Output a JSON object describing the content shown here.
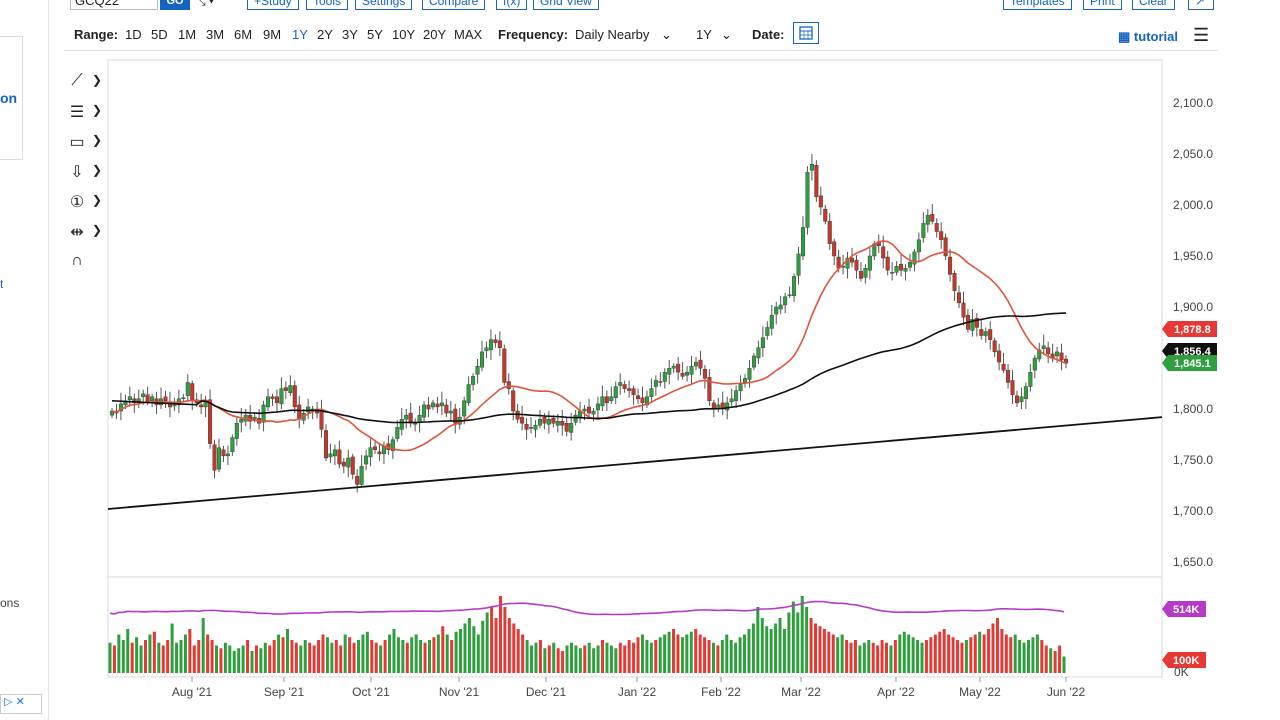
{
  "toolbar": {
    "symbol": "GCQ22",
    "go_label": "GO",
    "draw_icon": "pointer-icon",
    "study_label": "+Study",
    "tools_label": "Tools",
    "settings_label": "Settings",
    "compare_label": "Compare",
    "fx_label": "f(x)",
    "grid_label": "Grid View",
    "templates_label": "Templates",
    "print_label": "Print",
    "clear_label": "Clear"
  },
  "rangebar": {
    "range_label": "Range:",
    "ranges": [
      "1D",
      "5D",
      "1M",
      "3M",
      "6M",
      "9M",
      "1Y",
      "2Y",
      "3Y",
      "5Y",
      "10Y",
      "20Y",
      "MAX"
    ],
    "active_range": "1Y",
    "frequency_label": "Frequency:",
    "frequency_value": "Daily Nearby",
    "period_value": "1Y",
    "date_label": "Date:",
    "tutorial_label": "tutorial"
  },
  "left_panel": {
    "fragment_1": "on",
    "fragment_2": "t",
    "fragment_3": "ons"
  },
  "tools": [
    "line-tool-icon",
    "fib-tool-icon",
    "rectangle-tool-icon",
    "arrow-tool-icon",
    "counter-tool-icon",
    "measure-tool-icon",
    "magnet-icon"
  ],
  "chart_data": {
    "type": "candlestick",
    "price_axis": {
      "ticks": [
        "2,100.0",
        "2,050.0",
        "2,000.0",
        "1,950.0",
        "1,900.0",
        "1,850.0",
        "1,800.0",
        "1,750.0",
        "1,700.0",
        "1,650.0"
      ],
      "range": [
        1640,
        2120
      ]
    },
    "time_axis": {
      "ticks": [
        "Aug '21",
        "Sep '21",
        "Oct '21",
        "Nov '21",
        "Dec '21",
        "Jan '22",
        "Feb '22",
        "Mar '22",
        "Apr '22",
        "May '22",
        "Jun '22"
      ]
    },
    "last_price_tags": [
      {
        "label": "1,878.8",
        "color": "#e53935"
      },
      {
        "label": "1,856.4",
        "color": "#111111"
      },
      {
        "label": "1,845.1",
        "color": "#2e9e3f"
      }
    ],
    "volume_tags": [
      {
        "label": "514K",
        "color": "#b53ac7"
      },
      {
        "label": "100K",
        "color": "#e53935"
      }
    ],
    "volume_axis_label": "0K",
    "series": [
      {
        "name": "",
        "color": "#e0533c",
        "kind": "ma50"
      },
      {
        "name": "",
        "color": "#111111",
        "kind": "ma200"
      },
      {
        "name": "",
        "color": "#111111",
        "kind": "trendline",
        "points": [
          [
            0,
            1702
          ],
          [
            1,
            1792
          ]
        ]
      }
    ],
    "price_series": [
      1798,
      1796,
      1805,
      1808,
      1812,
      1806,
      1810,
      1815,
      1807,
      1812,
      1804,
      1810,
      1808,
      1802,
      1806,
      1810,
      1811,
      1826,
      1808,
      1806,
      1802,
      1807,
      1766,
      1740,
      1762,
      1754,
      1756,
      1772,
      1786,
      1790,
      1794,
      1788,
      1792,
      1786,
      1804,
      1812,
      1810,
      1806,
      1820,
      1818,
      1823,
      1802,
      1790,
      1796,
      1802,
      1800,
      1796,
      1780,
      1752,
      1756,
      1760,
      1746,
      1744,
      1752,
      1736,
      1726,
      1744,
      1754,
      1762,
      1760,
      1756,
      1764,
      1760,
      1770,
      1782,
      1790,
      1794,
      1786,
      1786,
      1794,
      1804,
      1800,
      1806,
      1802,
      1806,
      1796,
      1798,
      1786,
      1792,
      1808,
      1824,
      1832,
      1842,
      1856,
      1860,
      1868,
      1865,
      1860,
      1826,
      1820,
      1798,
      1790,
      1786,
      1780,
      1782,
      1784,
      1790,
      1786,
      1790,
      1786,
      1788,
      1784,
      1778,
      1786,
      1794,
      1798,
      1800,
      1796,
      1798,
      1805,
      1812,
      1806,
      1812,
      1822,
      1826,
      1820,
      1818,
      1814,
      1810,
      1806,
      1812,
      1820,
      1828,
      1826,
      1836,
      1840,
      1842,
      1836,
      1832,
      1836,
      1842,
      1846,
      1840,
      1830,
      1808,
      1800,
      1804,
      1800,
      1806,
      1810,
      1818,
      1824,
      1830,
      1840,
      1852,
      1860,
      1870,
      1880,
      1892,
      1900,
      1902,
      1910,
      1912,
      1930,
      1952,
      1978,
      2032,
      2040,
      2008,
      1998,
      1984,
      1962,
      1950,
      1938,
      1940,
      1948,
      1944,
      1936,
      1928,
      1938,
      1950,
      1962,
      1960,
      1948,
      1936,
      1934,
      1940,
      1936,
      1938,
      1944,
      1954,
      1966,
      1982,
      1990,
      1984,
      1974,
      1966,
      1950,
      1932,
      1916,
      1904,
      1890,
      1878,
      1888,
      1880,
      1872,
      1876,
      1868,
      1856,
      1846,
      1838,
      1826,
      1814,
      1806,
      1812,
      1822,
      1836,
      1850,
      1858,
      1862,
      1854,
      1850,
      1856,
      1848,
      1845
    ],
    "volume_values": [
      0.55,
      0.5,
      0.7,
      0.6,
      0.8,
      0.55,
      0.65,
      0.5,
      0.6,
      0.7,
      0.75,
      0.55,
      0.5,
      0.6,
      0.9,
      0.55,
      0.6,
      0.7,
      0.8,
      0.5,
      0.6,
      1.0,
      0.7,
      0.6,
      0.5,
      0.45,
      0.55,
      0.5,
      0.4,
      0.45,
      0.5,
      0.6,
      0.4,
      0.5,
      0.45,
      0.55,
      0.5,
      0.6,
      0.7,
      0.65,
      0.8,
      0.6,
      0.55,
      0.5,
      0.6,
      0.55,
      0.5,
      0.6,
      0.7,
      0.65,
      0.55,
      0.6,
      0.5,
      0.7,
      0.65,
      0.55,
      0.6,
      0.7,
      0.75,
      0.6,
      0.55,
      0.5,
      0.6,
      0.7,
      0.8,
      0.65,
      0.6,
      0.55,
      0.65,
      0.7,
      0.6,
      0.55,
      0.6,
      0.65,
      0.7,
      0.85,
      0.7,
      0.6,
      0.75,
      0.8,
      0.9,
      1.0,
      0.85,
      0.7,
      0.95,
      1.1,
      1.2,
      1.0,
      1.4,
      1.2,
      1.0,
      0.9,
      0.8,
      0.7,
      0.6,
      0.5,
      0.55,
      0.6,
      0.45,
      0.5,
      0.55,
      0.45,
      0.4,
      0.5,
      0.55,
      0.5,
      0.45,
      0.5,
      0.55,
      0.45,
      0.5,
      0.6,
      0.55,
      0.5,
      0.45,
      0.55,
      0.5,
      0.6,
      0.55,
      0.65,
      0.7,
      0.6,
      0.55,
      0.6,
      0.65,
      0.7,
      0.75,
      0.8,
      0.7,
      0.65,
      0.7,
      0.75,
      0.8,
      0.7,
      0.65,
      0.6,
      0.55,
      0.5,
      0.6,
      0.7,
      0.6,
      0.55,
      0.65,
      0.7,
      0.8,
      0.9,
      1.2,
      1.0,
      0.85,
      0.8,
      0.9,
      1.0,
      0.8,
      1.1,
      1.3,
      1.1,
      1.4,
      1.2,
      1.0,
      0.9,
      0.85,
      0.8,
      0.75,
      0.7,
      0.65,
      0.7,
      0.6,
      0.55,
      0.6,
      0.5,
      0.55,
      0.6,
      0.55,
      0.5,
      0.6,
      0.55,
      0.5,
      0.6,
      0.7,
      0.75,
      0.7,
      0.65,
      0.6,
      0.55,
      0.6,
      0.65,
      0.7,
      0.75,
      0.8,
      0.7,
      0.65,
      0.6,
      0.55,
      0.6,
      0.65,
      0.7,
      0.75,
      0.7,
      0.8,
      0.9,
      1.0,
      0.8,
      0.7,
      0.65,
      0.7,
      0.6,
      0.55,
      0.6,
      0.65,
      0.7,
      0.6,
      0.5,
      0.45,
      0.4,
      0.5,
      0.3
    ]
  }
}
